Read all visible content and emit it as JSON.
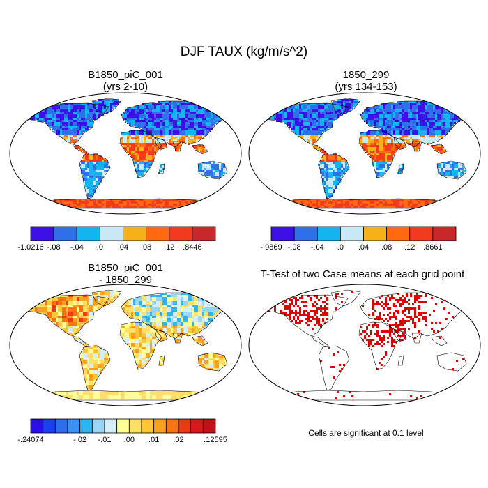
{
  "page_title": "DJF TAUX (kg/m/s^2)",
  "chart_data": [
    {
      "type": "heatmap",
      "panel": "top-left",
      "title": "B1850_piC_001",
      "subtitle": "(yrs 2-10)",
      "projection": "Robinson",
      "variable": "DJF TAUX",
      "units": "kg/m/s^2",
      "colorbar": {
        "labels": [
          "-1.0216",
          "-.08",
          "-.04",
          ".0",
          ".04",
          ".08",
          ".12",
          ".8446"
        ],
        "colors": [
          "#3d10e8",
          "#2f6fe8",
          "#12b5ef",
          "#c9e9f6",
          "#f6b018",
          "#ff6a10",
          "#f23a1c",
          "#c8282a"
        ]
      }
    },
    {
      "type": "heatmap",
      "panel": "top-right",
      "title": "1850_299",
      "subtitle": "(yrs 134-153)",
      "projection": "Robinson",
      "variable": "DJF TAUX",
      "units": "kg/m/s^2",
      "colorbar": {
        "labels": [
          "-.9869",
          "-.08",
          "-.04",
          ".0",
          ".04",
          ".08",
          ".12",
          ".8661"
        ],
        "colors": [
          "#3d10e8",
          "#2f6fe8",
          "#12b5ef",
          "#c9e9f6",
          "#f6b018",
          "#ff6a10",
          "#f23a1c",
          "#c8282a"
        ]
      }
    },
    {
      "type": "heatmap",
      "panel": "bottom-left",
      "title": "B1850_piC_001",
      "subtitle": "- 1850_299",
      "projection": "Robinson",
      "variable": "DJF TAUX difference",
      "units": "kg/m/s^2",
      "colorbar": {
        "labels": [
          "-.24074",
          "-.02",
          "-.01",
          ".00",
          ".01",
          ".02",
          ".12595"
        ],
        "label_positions": [
          0,
          4,
          6,
          8,
          10,
          12,
          15
        ],
        "colors": [
          "#2a10e8",
          "#1a40f0",
          "#2e6ee8",
          "#3c92ee",
          "#2fb4f0",
          "#9ad6f4",
          "#d6eef8",
          "#ffff99",
          "#ffe066",
          "#fcc53a",
          "#f8a020",
          "#f57514",
          "#e83a14",
          "#d41a1a",
          "#c0101a"
        ]
      }
    },
    {
      "type": "heatmap",
      "panel": "bottom-right",
      "title": "T-Test of two Case means at each grid point",
      "projection": "Robinson",
      "note": "Cells are significant at 0.1 level",
      "significance_level": 0.1,
      "colors": {
        "significant": "#e00000"
      }
    }
  ]
}
